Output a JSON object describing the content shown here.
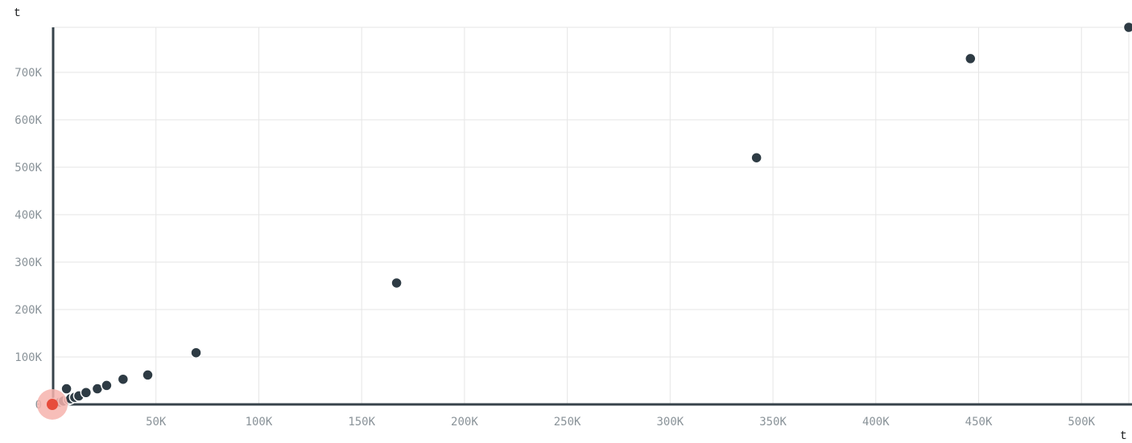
{
  "chart_data": {
    "type": "scatter",
    "xlabel": "t",
    "ylabel": "t",
    "xlim": [
      0,
      523000
    ],
    "ylim": [
      0,
      795000
    ],
    "x_ticks": [
      50000,
      100000,
      150000,
      200000,
      250000,
      300000,
      350000,
      400000,
      450000,
      500000
    ],
    "x_tick_labels": [
      "50K",
      "100K",
      "150K",
      "200K",
      "250K",
      "300K",
      "350K",
      "400K",
      "450K",
      "500K"
    ],
    "y_ticks": [
      0,
      100000,
      200000,
      300000,
      400000,
      500000,
      600000,
      700000
    ],
    "y_tick_labels": [
      "0",
      "100K",
      "200K",
      "300K",
      "400K",
      "500K",
      "600K",
      "700K"
    ],
    "grid": true,
    "colors": {
      "points": "#2e3b44",
      "highlight": "#e74c3c",
      "highlight_halo": "#f6b3ad",
      "axis": "#37434b",
      "grid": "#e6e6e6"
    },
    "highlight_point": {
      "x": 0,
      "y": 0
    },
    "points": [
      {
        "x": 500,
        "y": 1500
      },
      {
        "x": 1500,
        "y": 2500
      },
      {
        "x": 2500,
        "y": 3500
      },
      {
        "x": 3500,
        "y": 5000
      },
      {
        "x": 5000,
        "y": 7000
      },
      {
        "x": 6500,
        "y": 33000
      },
      {
        "x": 7500,
        "y": 10000
      },
      {
        "x": 8500,
        "y": 12000
      },
      {
        "x": 10500,
        "y": 15000
      },
      {
        "x": 12500,
        "y": 18000
      },
      {
        "x": 16000,
        "y": 25000
      },
      {
        "x": 21500,
        "y": 33000
      },
      {
        "x": 26000,
        "y": 40000
      },
      {
        "x": 34000,
        "y": 53000
      },
      {
        "x": 46000,
        "y": 62000
      },
      {
        "x": 69500,
        "y": 109000
      },
      {
        "x": 167000,
        "y": 256000
      },
      {
        "x": 342000,
        "y": 520000
      },
      {
        "x": 446000,
        "y": 729000
      },
      {
        "x": 523000,
        "y": 795000
      }
    ]
  }
}
